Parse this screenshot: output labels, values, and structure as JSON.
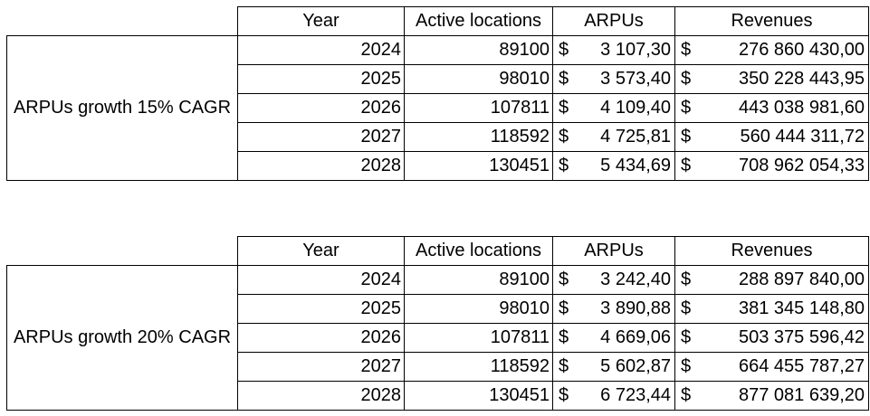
{
  "headers": {
    "year": "Year",
    "active_locations": "Active locations",
    "arpus": "ARPUs",
    "revenues": "Revenues"
  },
  "currency_symbol": "$",
  "tables": [
    {
      "label": "ARPUs growth 15% CAGR",
      "rows": [
        {
          "year": "2024",
          "active_locations": "89100",
          "arpus": "3 107,30",
          "revenues": "276 860 430,00"
        },
        {
          "year": "2025",
          "active_locations": "98010",
          "arpus": "3 573,40",
          "revenues": "350 228 443,95"
        },
        {
          "year": "2026",
          "active_locations": "107811",
          "arpus": "4 109,40",
          "revenues": "443 038 981,60"
        },
        {
          "year": "2027",
          "active_locations": "118592",
          "arpus": "4 725,81",
          "revenues": "560 444 311,72"
        },
        {
          "year": "2028",
          "active_locations": "130451",
          "arpus": "5 434,69",
          "revenues": "708 962 054,33"
        }
      ]
    },
    {
      "label": "ARPUs growth 20% CAGR",
      "rows": [
        {
          "year": "2024",
          "active_locations": "89100",
          "arpus": "3 242,40",
          "revenues": "288 897 840,00"
        },
        {
          "year": "2025",
          "active_locations": "98010",
          "arpus": "3 890,88",
          "revenues": "381 345 148,80"
        },
        {
          "year": "2026",
          "active_locations": "107811",
          "arpus": "4 669,06",
          "revenues": "503 375 596,42"
        },
        {
          "year": "2027",
          "active_locations": "118592",
          "arpus": "5 602,87",
          "revenues": "664 455 787,27"
        },
        {
          "year": "2028",
          "active_locations": "130451",
          "arpus": "6 723,44",
          "revenues": "877 081 639,20"
        }
      ]
    }
  ]
}
